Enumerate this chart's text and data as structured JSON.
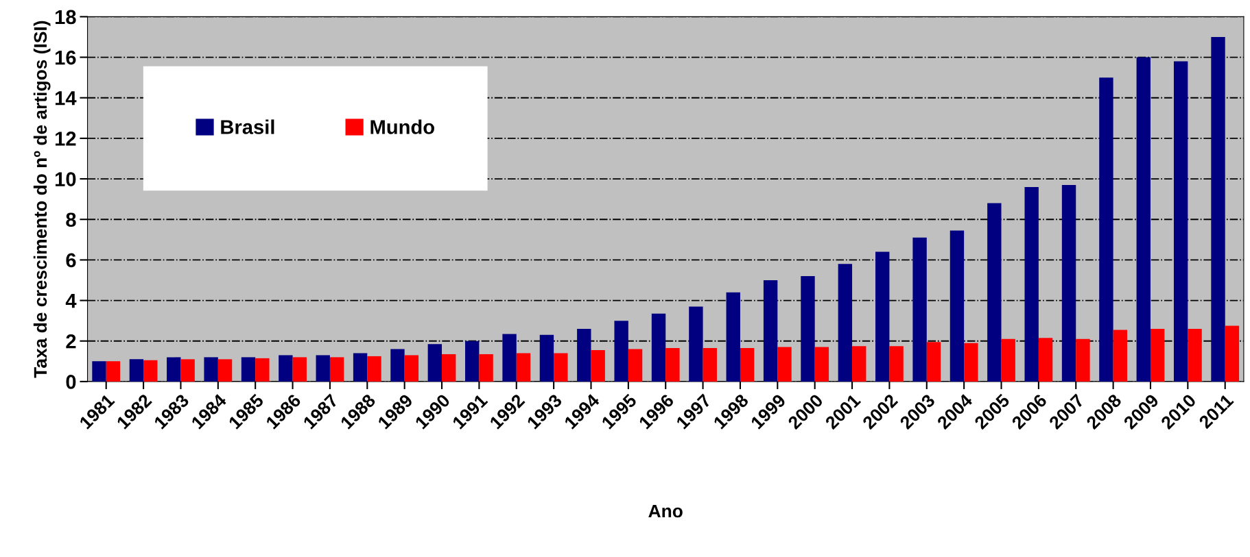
{
  "chart_data": {
    "type": "bar",
    "xlabel": "Ano",
    "ylabel": "Taxa de crescimento do nº de artigos (ISI)",
    "categories": [
      "1981",
      "1982",
      "1983",
      "1984",
      "1985",
      "1986",
      "1987",
      "1988",
      "1989",
      "1990",
      "1991",
      "1992",
      "1993",
      "1994",
      "1995",
      "1996",
      "1997",
      "1998",
      "1999",
      "2000",
      "2001",
      "2002",
      "2003",
      "2004",
      "2005",
      "2006",
      "2007",
      "2008",
      "2009",
      "2010",
      "2011"
    ],
    "series": [
      {
        "name": "Brasil",
        "color": "#000080",
        "values": [
          1.0,
          1.1,
          1.2,
          1.2,
          1.2,
          1.3,
          1.3,
          1.4,
          1.6,
          1.85,
          2.0,
          2.35,
          2.3,
          2.6,
          3.0,
          3.35,
          3.7,
          4.4,
          5.0,
          5.2,
          5.8,
          6.4,
          7.1,
          7.45,
          8.8,
          9.6,
          9.7,
          15.0,
          16.0,
          15.8,
          17.0
        ]
      },
      {
        "name": "Mundo",
        "color": "#ff0000",
        "values": [
          1.0,
          1.05,
          1.1,
          1.1,
          1.15,
          1.2,
          1.2,
          1.25,
          1.3,
          1.35,
          1.35,
          1.4,
          1.4,
          1.55,
          1.6,
          1.65,
          1.65,
          1.65,
          1.7,
          1.7,
          1.75,
          1.75,
          1.95,
          1.9,
          2.1,
          2.15,
          2.1,
          2.55,
          2.6,
          2.6,
          2.75
        ]
      }
    ],
    "ylim": [
      0,
      18
    ],
    "yticks": [
      0,
      2,
      4,
      6,
      8,
      10,
      12,
      14,
      16,
      18
    ],
    "grid": "y",
    "legend": "top left"
  }
}
